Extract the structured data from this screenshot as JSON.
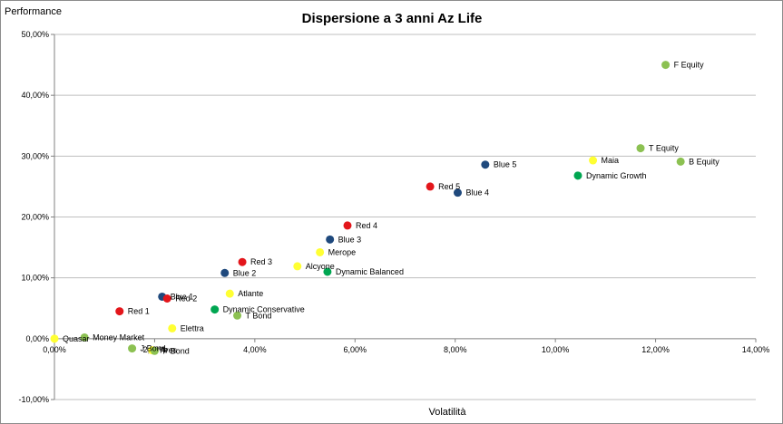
{
  "chart_data": {
    "type": "scatter",
    "title": "Dispersione a 3 anni Az Life",
    "xlabel": "Volatilità",
    "ylabel": "Performance",
    "xlim": [
      0,
      14
    ],
    "ylim": [
      -10,
      50
    ],
    "x_ticks": [
      {
        "value": 0,
        "label": "0,00%"
      },
      {
        "value": 2,
        "label": "2,00%"
      },
      {
        "value": 4,
        "label": "4,00%"
      },
      {
        "value": 6,
        "label": "6,00%"
      },
      {
        "value": 8,
        "label": "8,00%"
      },
      {
        "value": 10,
        "label": "10,00%"
      },
      {
        "value": 12,
        "label": "12,00%"
      },
      {
        "value": 14,
        "label": "14,00%"
      }
    ],
    "y_ticks": [
      {
        "value": -10,
        "label": "-10,00%"
      },
      {
        "value": 0,
        "label": "0,00%"
      },
      {
        "value": 10,
        "label": "10,00%"
      },
      {
        "value": 20,
        "label": "20,00%"
      },
      {
        "value": 30,
        "label": "30,00%"
      },
      {
        "value": 40,
        "label": "40,00%"
      },
      {
        "value": 50,
        "label": "50,00%"
      }
    ],
    "grid": "horizontal",
    "colors": {
      "red": "#e3161b",
      "blue": "#1f497d",
      "yellow": "#ffff33",
      "green": "#00a651",
      "lightgreen": "#8cc152"
    },
    "points": [
      {
        "name": "F Equity",
        "x": 12.2,
        "y": 45.0,
        "color": "lightgreen"
      },
      {
        "name": "T Equity",
        "x": 11.7,
        "y": 31.3,
        "color": "lightgreen"
      },
      {
        "name": "B Equity",
        "x": 12.5,
        "y": 29.1,
        "color": "lightgreen"
      },
      {
        "name": "Maia",
        "x": 10.75,
        "y": 29.3,
        "color": "yellow"
      },
      {
        "name": "Dynamic Growth",
        "x": 10.45,
        "y": 26.8,
        "color": "green"
      },
      {
        "name": "Blue 5",
        "x": 8.6,
        "y": 28.6,
        "color": "blue"
      },
      {
        "name": "Red 5",
        "x": 7.5,
        "y": 25.0,
        "color": "red"
      },
      {
        "name": "Blue 4",
        "x": 8.05,
        "y": 24.0,
        "color": "blue"
      },
      {
        "name": "Red 4",
        "x": 5.85,
        "y": 18.6,
        "color": "red"
      },
      {
        "name": "Blue 3",
        "x": 5.5,
        "y": 16.3,
        "color": "blue"
      },
      {
        "name": "Merope",
        "x": 5.3,
        "y": 14.2,
        "color": "yellow"
      },
      {
        "name": "Alcyone",
        "x": 4.85,
        "y": 11.9,
        "color": "yellow"
      },
      {
        "name": "Dynamic Balanced",
        "x": 5.45,
        "y": 11.0,
        "color": "green"
      },
      {
        "name": "Red 3",
        "x": 3.75,
        "y": 12.6,
        "color": "red"
      },
      {
        "name": "Blue 2",
        "x": 3.4,
        "y": 10.8,
        "color": "blue"
      },
      {
        "name": "Atlante",
        "x": 3.5,
        "y": 7.4,
        "color": "yellow"
      },
      {
        "name": "Blue 1",
        "x": 2.15,
        "y": 6.9,
        "color": "blue"
      },
      {
        "name": "Red 2",
        "x": 2.25,
        "y": 6.6,
        "color": "red"
      },
      {
        "name": "Dynamic Conservative",
        "x": 3.2,
        "y": 4.8,
        "color": "green"
      },
      {
        "name": "T Bond",
        "x": 3.65,
        "y": 3.8,
        "color": "lightgreen"
      },
      {
        "name": "Red 1",
        "x": 1.3,
        "y": 4.5,
        "color": "red"
      },
      {
        "name": "Elettra",
        "x": 2.35,
        "y": 1.7,
        "color": "yellow"
      },
      {
        "name": "Money Market",
        "x": 0.6,
        "y": 0.2,
        "color": "lightgreen"
      },
      {
        "name": "Quasar",
        "x": 0.0,
        "y": 0.0,
        "color": "yellow"
      },
      {
        "name": "J Bond",
        "x": 1.55,
        "y": -1.6,
        "color": "lightgreen"
      },
      {
        "name": "Ares",
        "x": 1.95,
        "y": -1.9,
        "color": "yellow"
      },
      {
        "name": "P Bond",
        "x": 2.0,
        "y": -2.0,
        "color": "lightgreen"
      }
    ]
  }
}
